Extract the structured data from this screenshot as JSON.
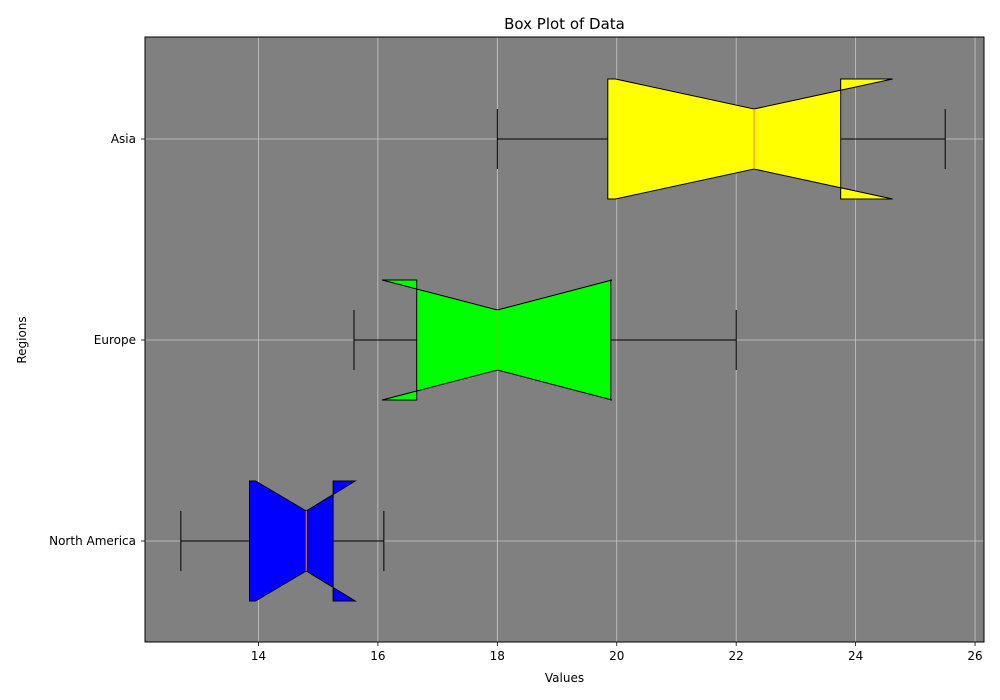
{
  "chart_data": {
    "type": "box",
    "orientation": "horizontal",
    "notched": true,
    "title": "Box Plot of Data",
    "xlabel": "Values",
    "ylabel": "Regions",
    "xlim": [
      12.1,
      26.15
    ],
    "xticks": [
      14,
      16,
      18,
      20,
      22,
      24,
      26
    ],
    "grid": true,
    "categories": [
      "North America",
      "Europe",
      "Asia"
    ],
    "boxes": [
      {
        "category": "North America",
        "whisker_low": 12.7,
        "q1": 13.85,
        "median": 14.8,
        "q3": 15.25,
        "whisker_high": 16.1,
        "notch_low": 13.95,
        "notch_high": 15.62,
        "color": "#0000ff"
      },
      {
        "category": "Europe",
        "whisker_low": 15.6,
        "q1": 16.65,
        "median": 18.0,
        "q3": 19.9,
        "whisker_high": 22.0,
        "notch_low": 16.07,
        "notch_high": 19.92,
        "color": "#00ff00"
      },
      {
        "category": "Asia",
        "whisker_low": 18.0,
        "q1": 19.85,
        "median": 22.3,
        "q3": 23.75,
        "whisker_high": 25.5,
        "notch_low": 19.98,
        "notch_high": 24.62,
        "color": "#ffff00"
      }
    ],
    "colors": {
      "axes_background": "#808080",
      "grid": "#c8c8c8",
      "median_line": "#ff7f0e",
      "edge": "#000000"
    }
  }
}
